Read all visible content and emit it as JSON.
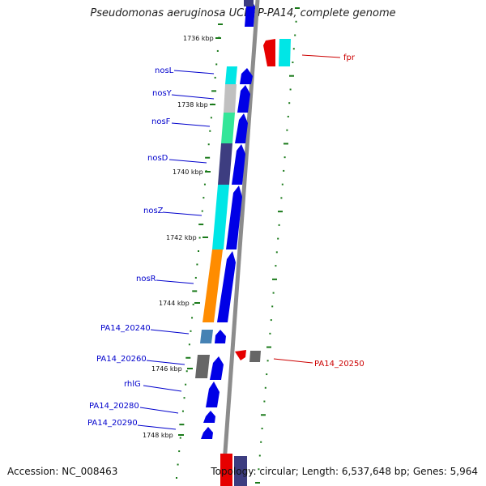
{
  "title": "Pseudomonas aeruginosa UCBPP-PA14, complete genome",
  "accession": "Accession: NC_008463",
  "topology": "Topology: circular; Length: 6,537,648 bp; Genes: 5,964",
  "colors": {
    "backbone": "#8c8c8c",
    "tick": "#1a7a1a",
    "cds_forward": "#0000e6",
    "cds_reverse": "#e60000",
    "label_forward": "#0000cc",
    "label_reverse": "#cc0000",
    "cyan": "#00e6e6",
    "silver": "#c0c0c0",
    "mint": "#33e699",
    "indigo": "#3d3d80",
    "orange": "#ff8c00",
    "steel": "#4682b4",
    "gray": "#666666"
  },
  "kbp_labels": [
    "1736 kbp",
    "1738 kbp",
    "1740 kbp",
    "1742 kbp",
    "1744 kbp",
    "1746 kbp",
    "1748 kbp"
  ],
  "genes_forward": [
    {
      "name": "nosL",
      "box": "cyan"
    },
    {
      "name": "nosY",
      "box": "silver"
    },
    {
      "name": "nosF",
      "box": "mint"
    },
    {
      "name": "nosD",
      "box": "indigo"
    },
    {
      "name": "nosZ",
      "box": "cyan"
    },
    {
      "name": "nosR",
      "box": "orange"
    },
    {
      "name": "PA14_20240",
      "box": "steel"
    },
    {
      "name": "PA14_20260",
      "box": "gray"
    },
    {
      "name": "rhlG",
      "box": ""
    },
    {
      "name": "PA14_20280",
      "box": ""
    },
    {
      "name": "PA14_20290",
      "box": ""
    }
  ],
  "genes_reverse": [
    {
      "name": "fpr",
      "box": "cyan"
    },
    {
      "name": "PA14_20250",
      "box": "gray"
    }
  ]
}
